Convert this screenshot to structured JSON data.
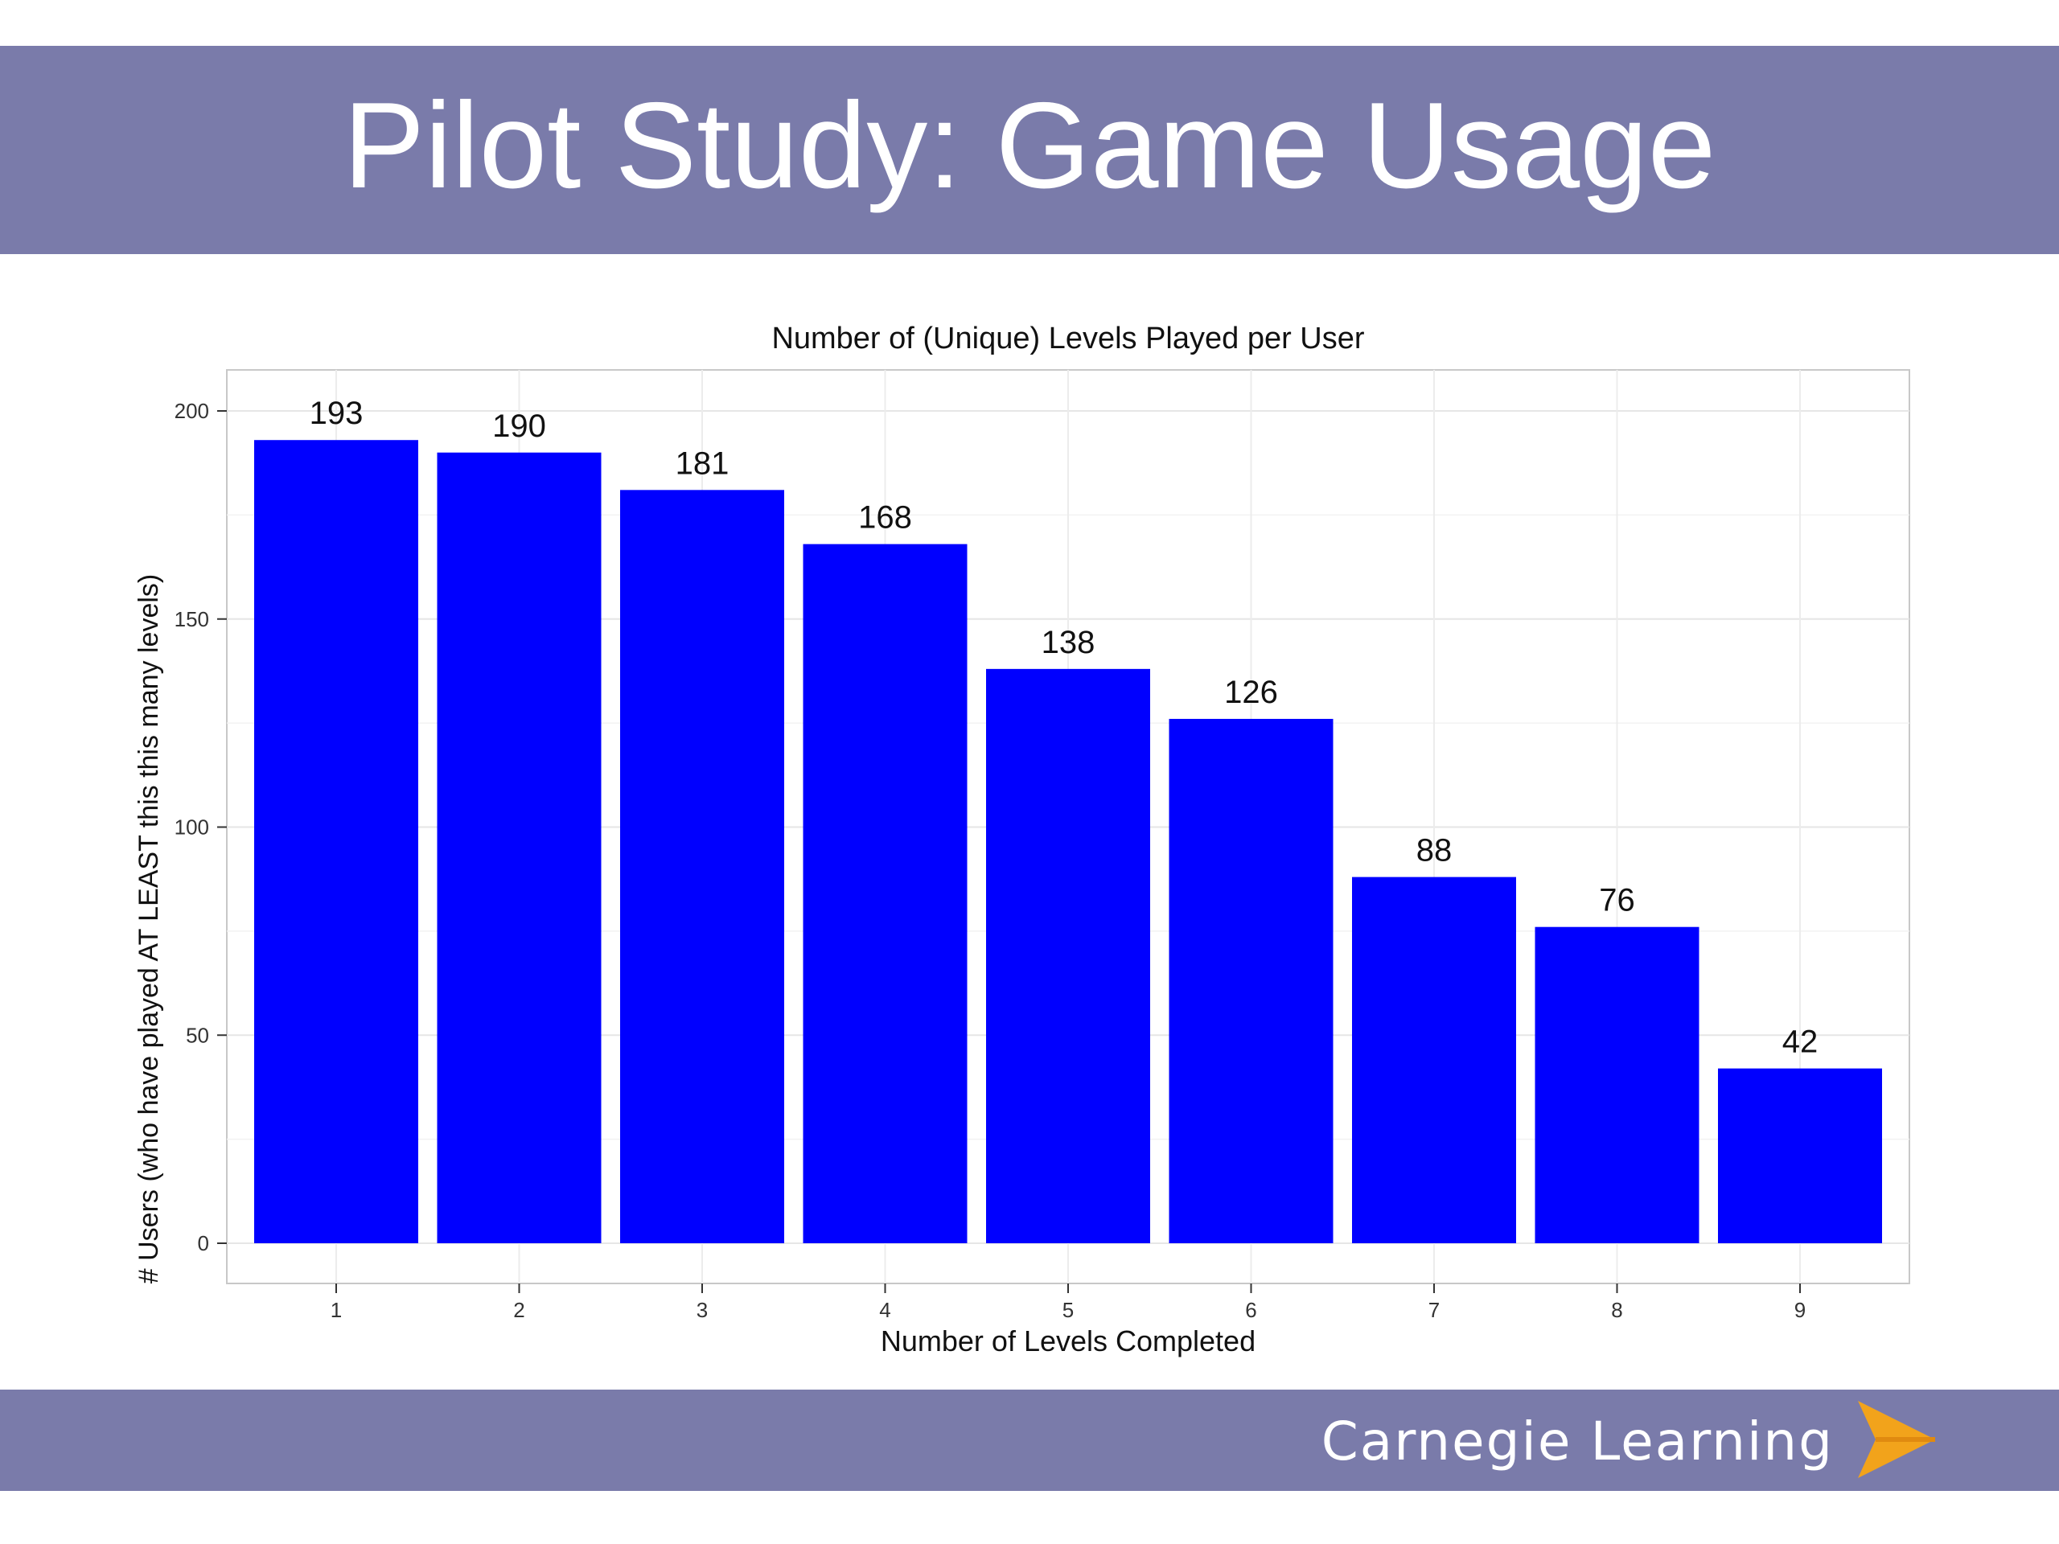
{
  "slide": {
    "title": "Pilot Study: Game Usage"
  },
  "footer": {
    "brand": "Carnegie Learning",
    "logo_icon": "chevron-right-logo",
    "logo_color": "#f2a31b"
  },
  "colors": {
    "band": "#7a7baa",
    "bar": "#0000ff"
  },
  "chart_data": {
    "type": "bar",
    "title": "Number of (Unique) Levels Played per User",
    "xlabel": "Number of Levels Completed",
    "ylabel": "# Users (who have played AT LEAST this this many levels)",
    "categories": [
      "1",
      "2",
      "3",
      "4",
      "5",
      "6",
      "7",
      "8",
      "9"
    ],
    "values": [
      193,
      190,
      181,
      168,
      138,
      126,
      88,
      76,
      42
    ],
    "ylim": [
      0,
      210
    ],
    "yticks": [
      0,
      50,
      100,
      150,
      200
    ],
    "grid": true,
    "legend": "none",
    "bar_color": "#0000ff"
  }
}
